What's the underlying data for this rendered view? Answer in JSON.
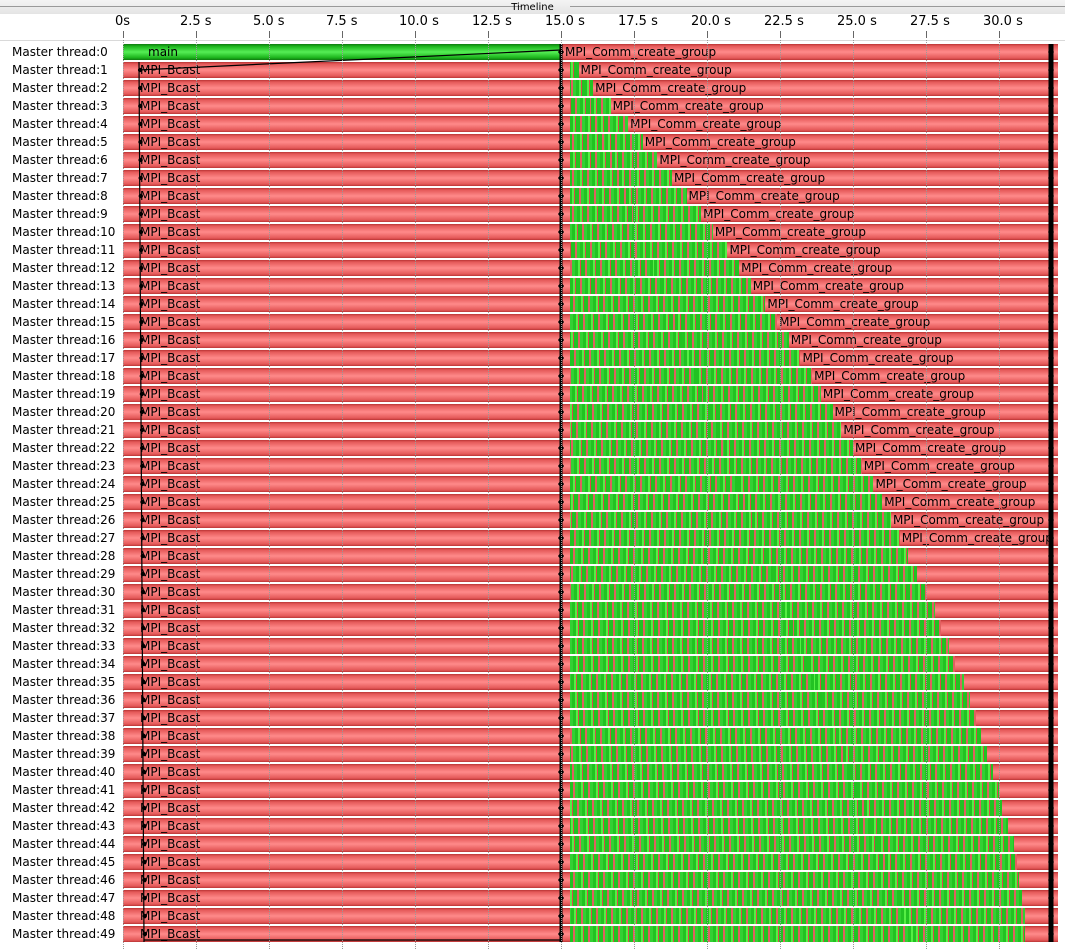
{
  "window": {
    "title": "Timeline"
  },
  "axis": {
    "ticks": [
      "0s",
      "2.5 s",
      "5.0 s",
      "7.5 s",
      "10.0 s",
      "12.5 s",
      "15.0 s",
      "17.5 s",
      "20.0 s",
      "22.5 s",
      "25.0 s",
      "27.5 s",
      "30.0 s"
    ],
    "max_seconds": 31.8
  },
  "colors": {
    "waiting_red": "#ff7a7a",
    "running_green": "#22c222",
    "marker": "#000000",
    "gridline": "#9a9a9a"
  },
  "threads": [
    {
      "label": "Master thread:0",
      "state": "main",
      "func": "main",
      "func2": "MPI_Comm_create_group",
      "activity_end_s": 15.1
    },
    {
      "label": "Master thread:1",
      "state": "bcast",
      "func": "MPI_Bcast",
      "func2": "MPI_Comm_create_group",
      "activity_end_s": 15.6
    },
    {
      "label": "Master thread:2",
      "state": "bcast",
      "func": "MPI_Bcast",
      "func2": "MPI_Comm_create_group",
      "activity_end_s": 16.1
    },
    {
      "label": "Master thread:3",
      "state": "bcast",
      "func": "MPI_Bcast",
      "func2": "MPI_Comm_create_group",
      "activity_end_s": 16.7
    },
    {
      "label": "Master thread:4",
      "state": "bcast",
      "func": "MPI_Bcast",
      "func2": "MPI_Comm_create_group",
      "activity_end_s": 17.3
    },
    {
      "label": "Master thread:5",
      "state": "bcast",
      "func": "MPI_Bcast",
      "func2": "MPI_Comm_create_group",
      "activity_end_s": 17.8
    },
    {
      "label": "Master thread:6",
      "state": "bcast",
      "func": "MPI_Bcast",
      "func2": "MPI_Comm_create_group",
      "activity_end_s": 18.3
    },
    {
      "label": "Master thread:7",
      "state": "bcast",
      "func": "MPI_Bcast",
      "func2": "MPI_Comm_create_group",
      "activity_end_s": 18.8
    },
    {
      "label": "Master thread:8",
      "state": "bcast",
      "func": "MPI_Bcast",
      "func2": "MPI_Comm_create_group",
      "activity_end_s": 19.3
    },
    {
      "label": "Master thread:9",
      "state": "bcast",
      "func": "MPI_Bcast",
      "func2": "MPI_Comm_create_group",
      "activity_end_s": 19.8
    },
    {
      "label": "Master thread:10",
      "state": "bcast",
      "func": "MPI_Bcast",
      "func2": "MPI_Comm_create_group",
      "activity_end_s": 20.2
    },
    {
      "label": "Master thread:11",
      "state": "bcast",
      "func": "MPI_Bcast",
      "func2": "MPI_Comm_create_group",
      "activity_end_s": 20.7
    },
    {
      "label": "Master thread:12",
      "state": "bcast",
      "func": "MPI_Bcast",
      "func2": "MPI_Comm_create_group",
      "activity_end_s": 21.1
    },
    {
      "label": "Master thread:13",
      "state": "bcast",
      "func": "MPI_Bcast",
      "func2": "MPI_Comm_create_group",
      "activity_end_s": 21.5
    },
    {
      "label": "Master thread:14",
      "state": "bcast",
      "func": "MPI_Bcast",
      "func2": "MPI_Comm_create_group",
      "activity_end_s": 22.0
    },
    {
      "label": "Master thread:15",
      "state": "bcast",
      "func": "MPI_Bcast",
      "func2": "MPI_Comm_create_group",
      "activity_end_s": 22.4
    },
    {
      "label": "Master thread:16",
      "state": "bcast",
      "func": "MPI_Bcast",
      "func2": "MPI_Comm_create_group",
      "activity_end_s": 22.8
    },
    {
      "label": "Master thread:17",
      "state": "bcast",
      "func": "MPI_Bcast",
      "func2": "MPI_Comm_create_group",
      "activity_end_s": 23.2
    },
    {
      "label": "Master thread:18",
      "state": "bcast",
      "func": "MPI_Bcast",
      "func2": "MPI_Comm_create_group",
      "activity_end_s": 23.6
    },
    {
      "label": "Master thread:19",
      "state": "bcast",
      "func": "MPI_Bcast",
      "func2": "MPI_Comm_create_group",
      "activity_end_s": 23.9
    },
    {
      "label": "Master thread:20",
      "state": "bcast",
      "func": "MPI_Bcast",
      "func2": "MPI_Comm_create_group",
      "activity_end_s": 24.3
    },
    {
      "label": "Master thread:21",
      "state": "bcast",
      "func": "MPI_Bcast",
      "func2": "MPI_Comm_create_group",
      "activity_end_s": 24.6
    },
    {
      "label": "Master thread:22",
      "state": "bcast",
      "func": "MPI_Bcast",
      "func2": "MPI_Comm_create_group",
      "activity_end_s": 25.0
    },
    {
      "label": "Master thread:23",
      "state": "bcast",
      "func": "MPI_Bcast",
      "func2": "MPI_Comm_create_group",
      "activity_end_s": 25.3
    },
    {
      "label": "Master thread:24",
      "state": "bcast",
      "func": "MPI_Bcast",
      "func2": "MPI_Comm_create_group",
      "activity_end_s": 25.7
    },
    {
      "label": "Master thread:25",
      "state": "bcast",
      "func": "MPI_Bcast",
      "func2": "MPI_Comm_create_group",
      "activity_end_s": 26.0
    },
    {
      "label": "Master thread:26",
      "state": "bcast",
      "func": "MPI_Bcast",
      "func2": "MPI_Comm_create_group",
      "activity_end_s": 26.3
    },
    {
      "label": "Master thread:27",
      "state": "bcast",
      "func": "MPI_Bcast",
      "func2": "MPI_Comm_create_group",
      "activity_end_s": 26.6
    },
    {
      "label": "Master thread:28",
      "state": "bcast",
      "func": "MPI_Bcast",
      "func2": "",
      "activity_end_s": 26.9
    },
    {
      "label": "Master thread:29",
      "state": "bcast",
      "func": "MPI_Bcast",
      "func2": "",
      "activity_end_s": 27.2
    },
    {
      "label": "Master thread:30",
      "state": "bcast",
      "func": "MPI_Bcast",
      "func2": "",
      "activity_end_s": 27.5
    },
    {
      "label": "Master thread:31",
      "state": "bcast",
      "func": "MPI_Bcast",
      "func2": "",
      "activity_end_s": 27.8
    },
    {
      "label": "Master thread:32",
      "state": "bcast",
      "func": "MPI_Bcast",
      "func2": "",
      "activity_end_s": 28.0
    },
    {
      "label": "Master thread:33",
      "state": "bcast",
      "func": "MPI_Bcast",
      "func2": "",
      "activity_end_s": 28.3
    },
    {
      "label": "Master thread:34",
      "state": "bcast",
      "func": "MPI_Bcast",
      "func2": "",
      "activity_end_s": 28.5
    },
    {
      "label": "Master thread:35",
      "state": "bcast",
      "func": "MPI_Bcast",
      "func2": "",
      "activity_end_s": 28.8
    },
    {
      "label": "Master thread:36",
      "state": "bcast",
      "func": "MPI_Bcast",
      "func2": "",
      "activity_end_s": 29.0
    },
    {
      "label": "Master thread:37",
      "state": "bcast",
      "func": "MPI_Bcast",
      "func2": "",
      "activity_end_s": 29.2
    },
    {
      "label": "Master thread:38",
      "state": "bcast",
      "func": "MPI_Bcast",
      "func2": "",
      "activity_end_s": 29.4
    },
    {
      "label": "Master thread:39",
      "state": "bcast",
      "func": "MPI_Bcast",
      "func2": "",
      "activity_end_s": 29.6
    },
    {
      "label": "Master thread:40",
      "state": "bcast",
      "func": "MPI_Bcast",
      "func2": "",
      "activity_end_s": 29.8
    },
    {
      "label": "Master thread:41",
      "state": "bcast",
      "func": "MPI_Bcast",
      "func2": "",
      "activity_end_s": 30.0
    },
    {
      "label": "Master thread:42",
      "state": "bcast",
      "func": "MPI_Bcast",
      "func2": "",
      "activity_end_s": 30.1
    },
    {
      "label": "Master thread:43",
      "state": "bcast",
      "func": "MPI_Bcast",
      "func2": "",
      "activity_end_s": 30.3
    },
    {
      "label": "Master thread:44",
      "state": "bcast",
      "func": "MPI_Bcast",
      "func2": "",
      "activity_end_s": 30.5
    },
    {
      "label": "Master thread:45",
      "state": "bcast",
      "func": "MPI_Bcast",
      "func2": "",
      "activity_end_s": 30.6
    },
    {
      "label": "Master thread:46",
      "state": "bcast",
      "func": "MPI_Bcast",
      "func2": "",
      "activity_end_s": 30.7
    },
    {
      "label": "Master thread:47",
      "state": "bcast",
      "func": "MPI_Bcast",
      "func2": "",
      "activity_end_s": 30.8
    },
    {
      "label": "Master thread:48",
      "state": "bcast",
      "func": "MPI_Bcast",
      "func2": "",
      "activity_end_s": 30.9
    },
    {
      "label": "Master thread:49",
      "state": "bcast",
      "func": "MPI_Bcast",
      "func2": "",
      "activity_end_s": 30.9
    }
  ]
}
